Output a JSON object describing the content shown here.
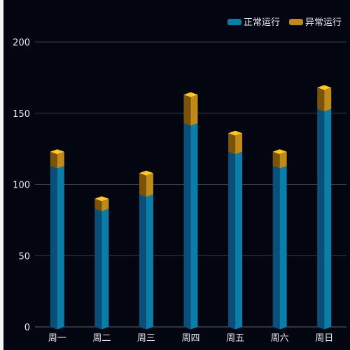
{
  "chart_data": {
    "type": "bar",
    "stacked": true,
    "style": "3d-cuboid",
    "categories": [
      "周一",
      "周二",
      "周三",
      "周四",
      "周五",
      "周六",
      "周日"
    ],
    "series": [
      {
        "name": "正常运行",
        "values": [
          113,
          83,
          93,
          143,
          123,
          113,
          153
        ],
        "colors": {
          "front": "#0a7ea8",
          "side": "#0a4f7a",
          "top": "#1a6ea8"
        }
      },
      {
        "name": "异常运行",
        "values": [
          10,
          7,
          15,
          20,
          13,
          10,
          15
        ],
        "colors": {
          "front": "#c08a18",
          "side": "#7a5208",
          "top": "#ffc81a"
        }
      }
    ],
    "ylim": [
      0,
      200
    ],
    "yticks": [
      0,
      50,
      100,
      150,
      200
    ],
    "grid": true,
    "legend_position": "top-right",
    "colors": {
      "background": "#030610",
      "grid": "#3a3e4c",
      "axis": "#5a6170",
      "tick_label": "#e8eaf0"
    }
  }
}
